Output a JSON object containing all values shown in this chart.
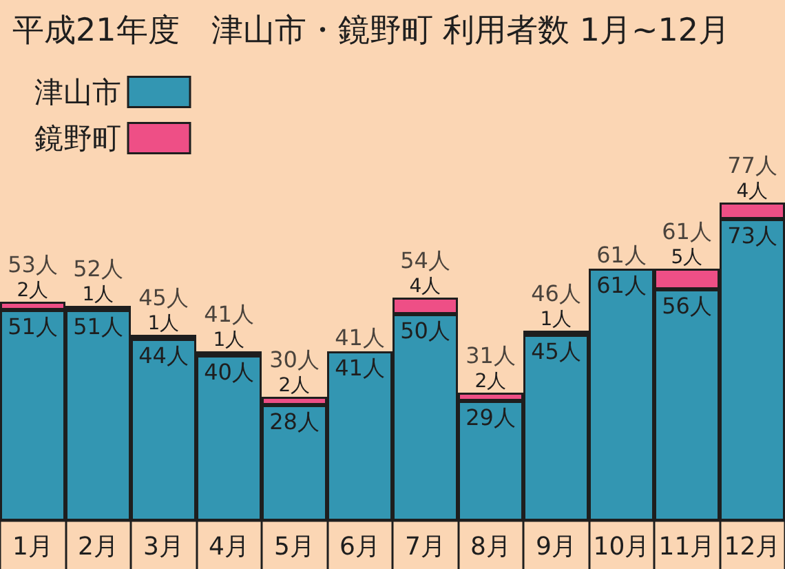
{
  "chart_data": {
    "type": "bar",
    "title": "平成21年度　津山市・鏡野町 利用者数 1月~12月",
    "categories": [
      "1月",
      "2月",
      "3月",
      "4月",
      "5月",
      "6月",
      "7月",
      "8月",
      "9月",
      "10月",
      "11月",
      "12月"
    ],
    "series": [
      {
        "name": "津山市",
        "color": "#3396b2",
        "values": [
          51,
          51,
          44,
          40,
          28,
          41,
          50,
          29,
          45,
          61,
          56,
          73
        ],
        "value_labels": [
          "51人",
          "51人",
          "44人",
          "40人",
          "28人",
          "41人",
          "50人",
          "29人",
          "45人",
          "61人",
          "56人",
          "73人"
        ]
      },
      {
        "name": "鏡野町",
        "color": "#ee4f86",
        "values": [
          2,
          1,
          1,
          1,
          2,
          null,
          4,
          2,
          1,
          null,
          5,
          4
        ],
        "value_labels": [
          "2人",
          "1人",
          "1人",
          "1人",
          "2人",
          null,
          "4人",
          "2人",
          "1人",
          null,
          "5人",
          "4人"
        ]
      }
    ],
    "totals": [
      "53人",
      "52人",
      "45人",
      "41人",
      "30人",
      "41人",
      "54人",
      "31人",
      "46人",
      "61人",
      "61人",
      "77人"
    ],
    "stacked": true,
    "legend": "top left",
    "grid": false,
    "tick_labels": "x"
  }
}
